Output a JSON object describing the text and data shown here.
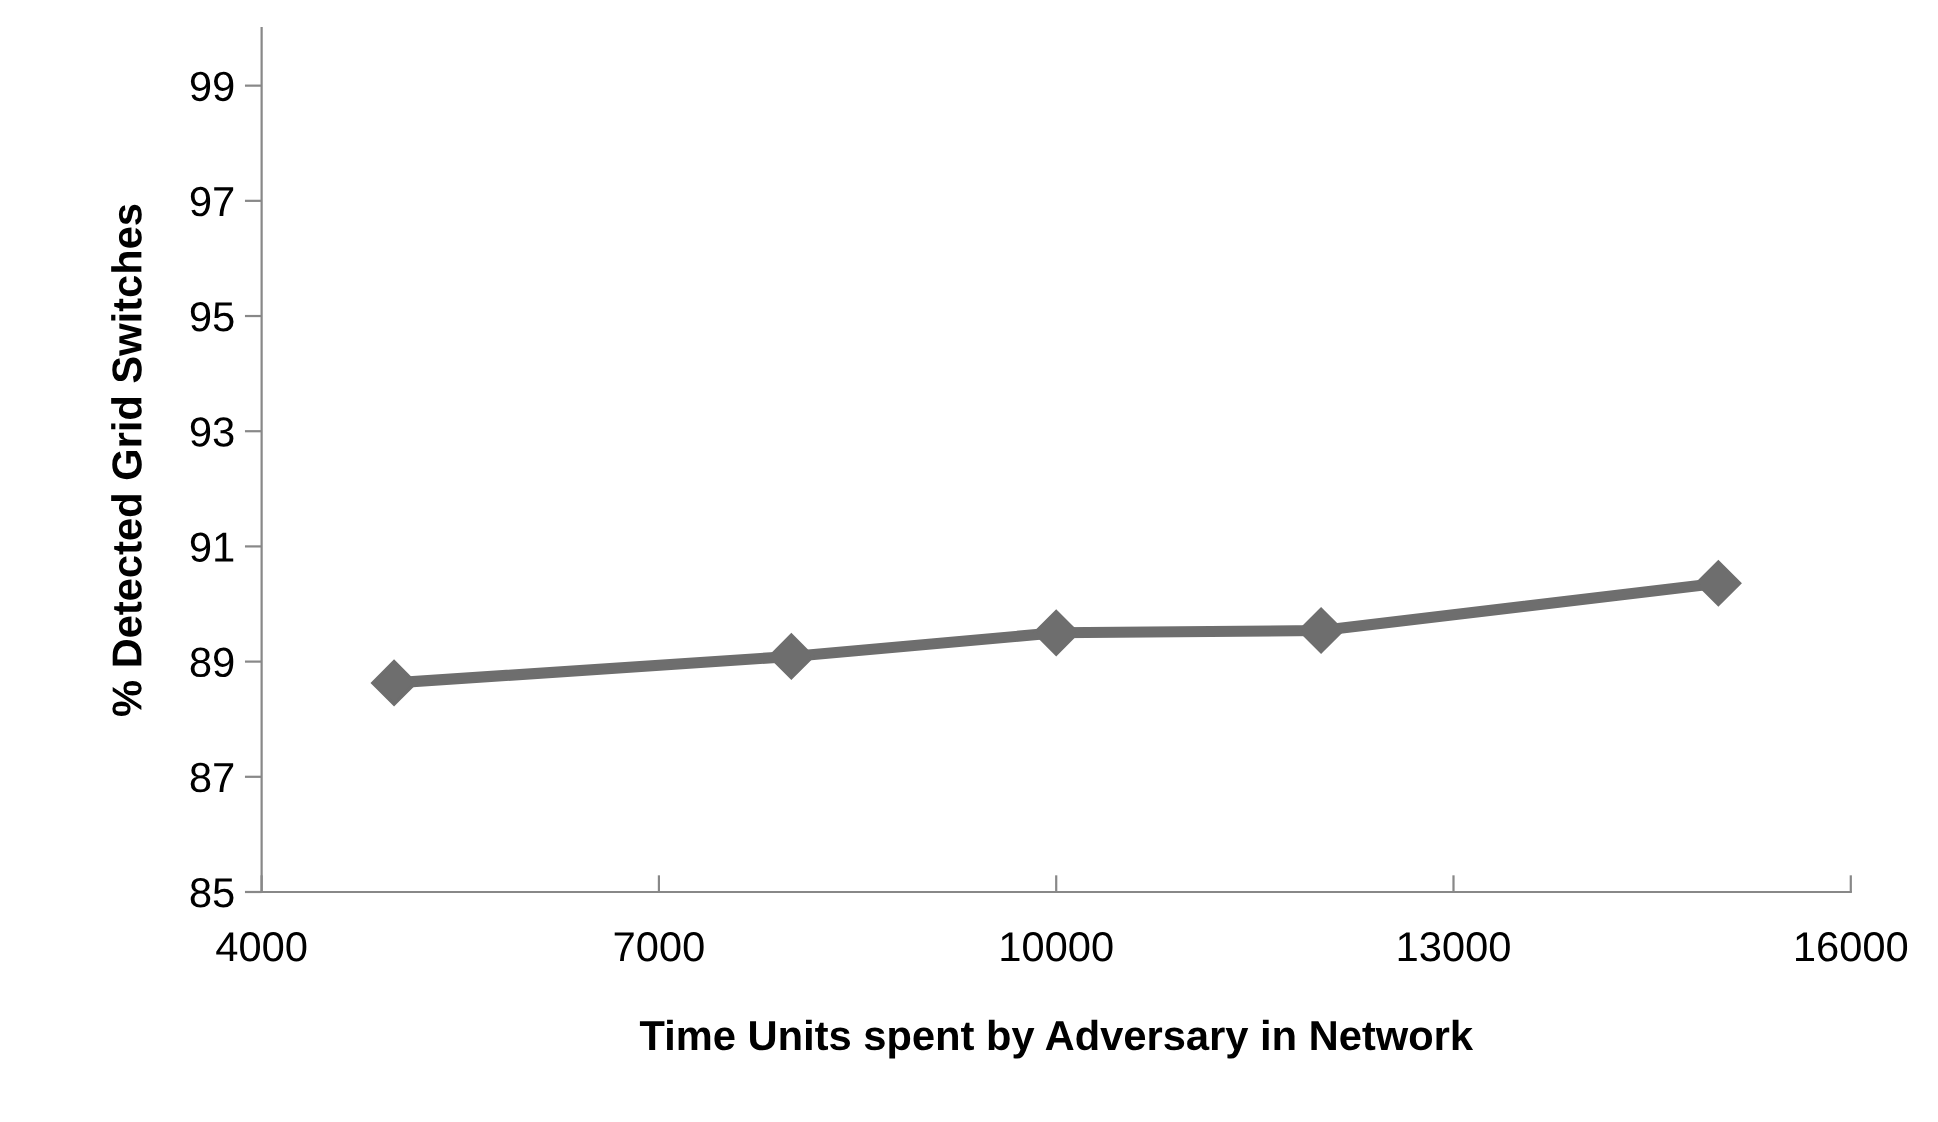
{
  "chart_data": {
    "type": "line",
    "xlabel": "Time Units spent by Adversary in Network",
    "ylabel": "% Detected Grid Switches",
    "x": [
      5000,
      8000,
      10000,
      12000,
      15000
    ],
    "series": [
      {
        "color": "#6e6e6e",
        "values": [
          88.63,
          89.09,
          89.5,
          89.54,
          90.36
        ]
      }
    ],
    "xlim": [
      4000,
      16000
    ],
    "xticks": [
      4000,
      7000,
      10000,
      13000,
      16000
    ],
    "ylim": [
      85,
      100
    ],
    "yticks": [
      85,
      87,
      89,
      91,
      93,
      95,
      97,
      99
    ],
    "grid": false,
    "legend": false,
    "marker": "diamond",
    "line_style": "solid"
  }
}
